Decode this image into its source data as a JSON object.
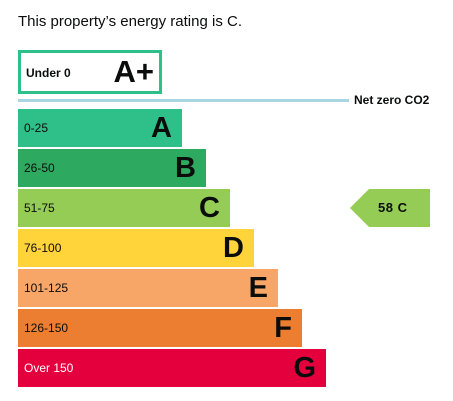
{
  "headline": "This property’s energy rating is C.",
  "top_band": {
    "range": "Under 0",
    "letter": "A+",
    "border_color": "#2ec088"
  },
  "net_zero": {
    "label": "Net zero CO2",
    "line_color": "#a9d6e3"
  },
  "bands": [
    {
      "range": "0-25",
      "letter": "A",
      "color": "#2ec088"
    },
    {
      "range": "26-50",
      "letter": "B",
      "color": "#2daa5f"
    },
    {
      "range": "51-75",
      "letter": "C",
      "color": "#94cc55"
    },
    {
      "range": "76-100",
      "letter": "D",
      "color": "#ffd33a"
    },
    {
      "range": "101-125",
      "letter": "E",
      "color": "#f8a668"
    },
    {
      "range": "126-150",
      "letter": "F",
      "color": "#ec7e32"
    },
    {
      "range": "Over 150",
      "letter": "G",
      "color": "#e4003d"
    }
  ],
  "current_rating": {
    "text": "58  C",
    "band": "C",
    "color": "#94cc55"
  }
}
